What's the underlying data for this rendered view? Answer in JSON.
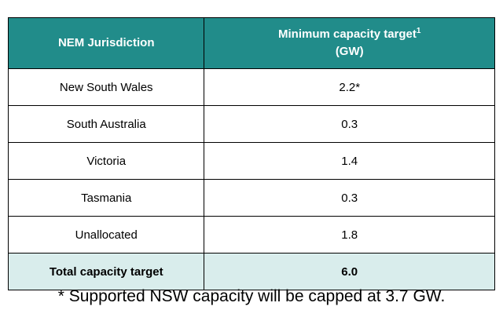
{
  "table": {
    "header": {
      "col1": "NEM Jurisdiction",
      "col2_title": "Minimum capacity target",
      "col2_sup": "1",
      "col2_unit": "(GW)"
    },
    "rows": [
      {
        "jurisdiction": "New South Wales",
        "value": "2.2*"
      },
      {
        "jurisdiction": "South Australia",
        "value": "0.3"
      },
      {
        "jurisdiction": "Victoria",
        "value": "1.4"
      },
      {
        "jurisdiction": "Tasmania",
        "value": "0.3"
      },
      {
        "jurisdiction": "Unallocated",
        "value": "1.8"
      }
    ],
    "total": {
      "label": "Total capacity target",
      "value": "6.0"
    }
  },
  "footnote": "* Supported NSW capacity will be capped at 3.7 GW.",
  "colors": {
    "header_bg": "#218c8a",
    "header_text": "#ffffff",
    "total_bg": "#d9edec",
    "border": "#000000"
  }
}
